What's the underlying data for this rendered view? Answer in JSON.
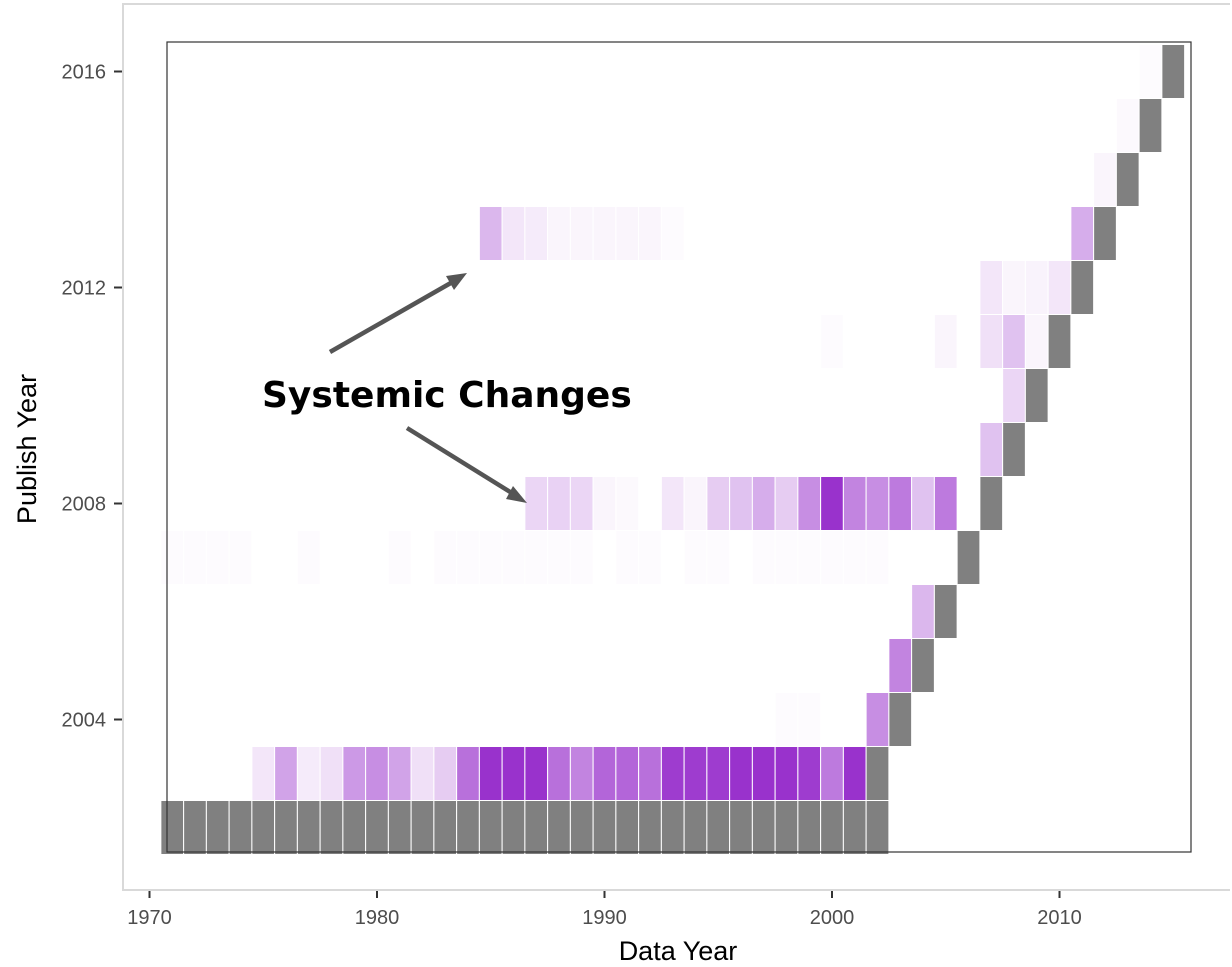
{
  "chart_data": {
    "type": "heatmap",
    "title": "",
    "xlabel": "Data Year",
    "ylabel": "Publish Year",
    "xlim": [
      1970,
      2015.5
    ],
    "ylim": [
      2000.5,
      2016.5
    ],
    "x_ticks": [
      "1970",
      "1980",
      "1990",
      "2000",
      "2010"
    ],
    "y_ticks": [
      "2004",
      "2008",
      "2012",
      "2016"
    ],
    "grid": false,
    "colors": {
      "baseline": "#808080",
      "fill_max": "#9932cc",
      "cell_border": "#ffffff"
    },
    "annotation": {
      "text": "Systemic Changes",
      "arrow_color": "#555555"
    },
    "baseline_cells": [
      [
        1971,
        2002
      ],
      [
        1972,
        2002
      ],
      [
        1973,
        2002
      ],
      [
        1974,
        2002
      ],
      [
        1975,
        2002
      ],
      [
        1976,
        2002
      ],
      [
        1977,
        2002
      ],
      [
        1978,
        2002
      ],
      [
        1979,
        2002
      ],
      [
        1980,
        2002
      ],
      [
        1981,
        2002
      ],
      [
        1982,
        2002
      ],
      [
        1983,
        2002
      ],
      [
        1984,
        2002
      ],
      [
        1985,
        2002
      ],
      [
        1986,
        2002
      ],
      [
        1987,
        2002
      ],
      [
        1988,
        2002
      ],
      [
        1989,
        2002
      ],
      [
        1990,
        2002
      ],
      [
        1991,
        2002
      ],
      [
        1992,
        2002
      ],
      [
        1993,
        2002
      ],
      [
        1994,
        2002
      ],
      [
        1995,
        2002
      ],
      [
        1996,
        2002
      ],
      [
        1997,
        2002
      ],
      [
        1998,
        2002
      ],
      [
        1999,
        2002
      ],
      [
        2000,
        2002
      ],
      [
        2001,
        2002
      ],
      [
        2002,
        2002
      ],
      [
        2002,
        2003
      ],
      [
        2003,
        2004
      ],
      [
        2004,
        2005
      ],
      [
        2005,
        2006
      ],
      [
        2006,
        2007
      ],
      [
        2007,
        2008
      ],
      [
        2008,
        2009
      ],
      [
        2009,
        2010
      ],
      [
        2010,
        2011
      ],
      [
        2011,
        2012
      ],
      [
        2012,
        2013
      ],
      [
        2013,
        2014
      ],
      [
        2014,
        2015
      ],
      [
        2015,
        2016
      ]
    ],
    "change_cells": [
      [
        1975,
        2003,
        0.12
      ],
      [
        1976,
        2003,
        0.45
      ],
      [
        1977,
        2003,
        0.1
      ],
      [
        1978,
        2003,
        0.15
      ],
      [
        1979,
        2003,
        0.5
      ],
      [
        1980,
        2003,
        0.55
      ],
      [
        1981,
        2003,
        0.45
      ],
      [
        1982,
        2003,
        0.15
      ],
      [
        1983,
        2003,
        0.25
      ],
      [
        1984,
        2003,
        0.7
      ],
      [
        1985,
        2003,
        1.0
      ],
      [
        1986,
        2003,
        1.0
      ],
      [
        1987,
        2003,
        1.0
      ],
      [
        1988,
        2003,
        0.7
      ],
      [
        1989,
        2003,
        0.6
      ],
      [
        1990,
        2003,
        0.75
      ],
      [
        1991,
        2003,
        0.75
      ],
      [
        1992,
        2003,
        0.7
      ],
      [
        1993,
        2003,
        0.95
      ],
      [
        1994,
        2003,
        0.95
      ],
      [
        1995,
        2003,
        0.95
      ],
      [
        1996,
        2003,
        1.0
      ],
      [
        1997,
        2003,
        1.0
      ],
      [
        1998,
        2003,
        1.0
      ],
      [
        1999,
        2003,
        0.95
      ],
      [
        2000,
        2003,
        0.65
      ],
      [
        2001,
        2003,
        1.0
      ],
      [
        1998,
        2004,
        0.02
      ],
      [
        1999,
        2004,
        0.02
      ],
      [
        2002,
        2004,
        0.55
      ],
      [
        2003,
        2005,
        0.6
      ],
      [
        2004,
        2006,
        0.35
      ],
      [
        1971,
        2007,
        0.02
      ],
      [
        1972,
        2007,
        0.02
      ],
      [
        1973,
        2007,
        0.02
      ],
      [
        1974,
        2007,
        0.02
      ],
      [
        1977,
        2007,
        0.02
      ],
      [
        1981,
        2007,
        0.02
      ],
      [
        1983,
        2007,
        0.02
      ],
      [
        1984,
        2007,
        0.02
      ],
      [
        1985,
        2007,
        0.02
      ],
      [
        1986,
        2007,
        0.02
      ],
      [
        1987,
        2007,
        0.02
      ],
      [
        1988,
        2007,
        0.02
      ],
      [
        1989,
        2007,
        0.02
      ],
      [
        1991,
        2007,
        0.02
      ],
      [
        1992,
        2007,
        0.02
      ],
      [
        1994,
        2007,
        0.02
      ],
      [
        1995,
        2007,
        0.02
      ],
      [
        1997,
        2007,
        0.02
      ],
      [
        1998,
        2007,
        0.02
      ],
      [
        1999,
        2007,
        0.02
      ],
      [
        2000,
        2007,
        0.02
      ],
      [
        2001,
        2007,
        0.02
      ],
      [
        2002,
        2007,
        0.02
      ],
      [
        1987,
        2008,
        0.2
      ],
      [
        1988,
        2008,
        0.22
      ],
      [
        1989,
        2008,
        0.2
      ],
      [
        1990,
        2008,
        0.05
      ],
      [
        1991,
        2008,
        0.03
      ],
      [
        1993,
        2008,
        0.12
      ],
      [
        1994,
        2008,
        0.05
      ],
      [
        1995,
        2008,
        0.25
      ],
      [
        1996,
        2008,
        0.3
      ],
      [
        1997,
        2008,
        0.4
      ],
      [
        1998,
        2008,
        0.25
      ],
      [
        1999,
        2008,
        0.55
      ],
      [
        2000,
        2008,
        1.0
      ],
      [
        2001,
        2008,
        0.6
      ],
      [
        2002,
        2008,
        0.55
      ],
      [
        2003,
        2008,
        0.65
      ],
      [
        2004,
        2008,
        0.3
      ],
      [
        2005,
        2008,
        0.65
      ],
      [
        2007,
        2009,
        0.3
      ],
      [
        2008,
        2010,
        0.2
      ],
      [
        2000,
        2011,
        0.02
      ],
      [
        2005,
        2011,
        0.05
      ],
      [
        2007,
        2011,
        0.15
      ],
      [
        2008,
        2011,
        0.3
      ],
      [
        2009,
        2011,
        0.05
      ],
      [
        2007,
        2012,
        0.12
      ],
      [
        2008,
        2012,
        0.05
      ],
      [
        2009,
        2012,
        0.06
      ],
      [
        2010,
        2012,
        0.12
      ],
      [
        1985,
        2013,
        0.35
      ],
      [
        1986,
        2013,
        0.12
      ],
      [
        1987,
        2013,
        0.1
      ],
      [
        1988,
        2013,
        0.05
      ],
      [
        1989,
        2013,
        0.05
      ],
      [
        1990,
        2013,
        0.05
      ],
      [
        1991,
        2013,
        0.05
      ],
      [
        1992,
        2013,
        0.05
      ],
      [
        1993,
        2013,
        0.02
      ],
      [
        2011,
        2013,
        0.4
      ],
      [
        2012,
        2014,
        0.05
      ],
      [
        2013,
        2015,
        0.03
      ],
      [
        2014,
        2016,
        0.02
      ]
    ]
  }
}
